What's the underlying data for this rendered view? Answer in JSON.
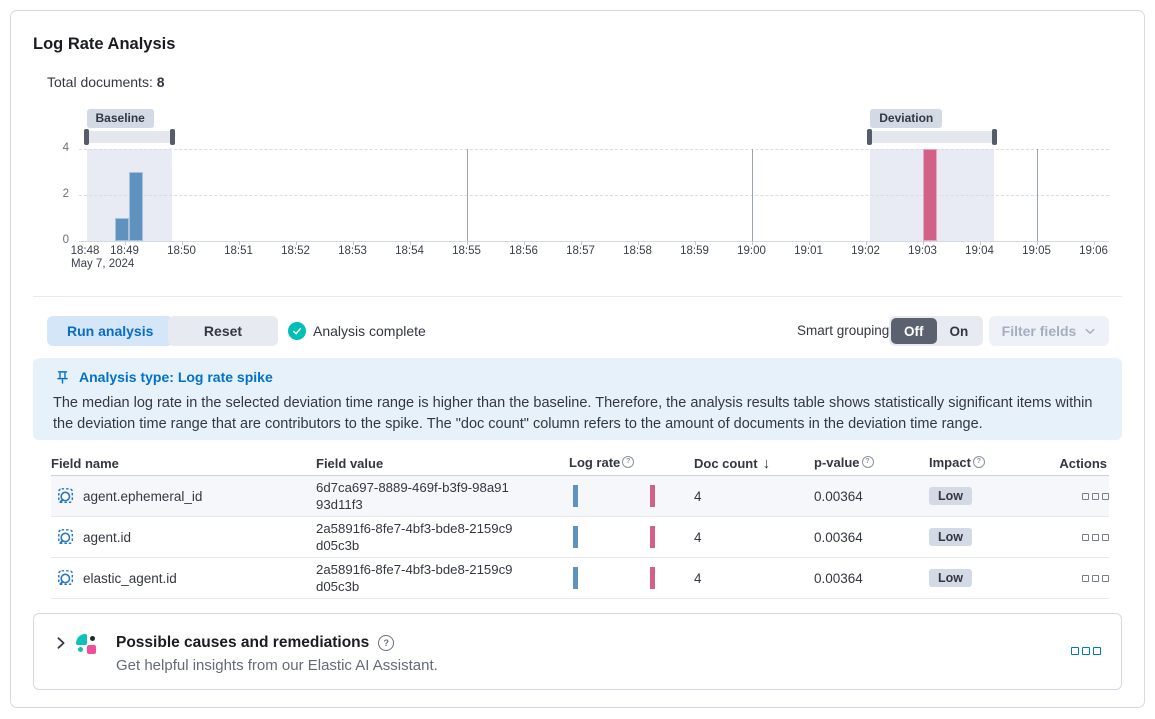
{
  "card": {
    "title": "Log Rate Analysis"
  },
  "summary": {
    "label": "Total documents:",
    "value": "8"
  },
  "chart_data": {
    "type": "bar",
    "title": "",
    "xlabel": "",
    "ylabel": "",
    "date_label": "May 7, 2024",
    "x_ticks": [
      "18:48",
      "18:49",
      "18:50",
      "18:51",
      "18:52",
      "18:53",
      "18:54",
      "18:55",
      "18:56",
      "18:57",
      "18:58",
      "18:59",
      "19:00",
      "19:01",
      "19:02",
      "19:03",
      "19:04",
      "19:05",
      "19:06"
    ],
    "y_ticks": [
      0,
      2,
      4
    ],
    "ylim": [
      0,
      4
    ],
    "v_gridlines": [
      "18:55:00",
      "19:00:00",
      "19:05:00"
    ],
    "bars": [
      {
        "time": "18:48:50",
        "count": 1,
        "series": "baseline"
      },
      {
        "time": "18:49:05",
        "count": 3,
        "series": "baseline"
      },
      {
        "time": "19:03:00",
        "count": 4,
        "series": "deviation"
      }
    ],
    "brushes": [
      {
        "name": "Baseline",
        "start": "18:48:20",
        "end": "18:49:50"
      },
      {
        "name": "Deviation",
        "start": "19:02:05",
        "end": "19:04:15"
      }
    ],
    "colors": {
      "baseline": "#6092C0",
      "deviation": "#D36086"
    }
  },
  "controls": {
    "run_button": "Run analysis",
    "reset_button": "Reset",
    "status": "Analysis complete",
    "smart_grouping_label": "Smart grouping",
    "toggle_off": "Off",
    "toggle_on": "On",
    "filter_fields": "Filter fields"
  },
  "callout": {
    "title": "Analysis type: Log rate spike",
    "body": "The median log rate in the selected deviation time range is higher than the baseline. Therefore, the analysis results table shows statistically significant items within the deviation time range that are contributors to the spike. The \"doc count\" column refers to the amount of documents in the deviation time range."
  },
  "table": {
    "columns": [
      "Field name",
      "Field value",
      "Log rate",
      "Doc count",
      "p-value",
      "Impact",
      "Actions"
    ],
    "sorted_column": "Doc count",
    "sort_direction": "desc",
    "rows": [
      {
        "field_name": "agent.ephemeral_id",
        "field_value": "6d7ca697-8889-469f-b3f9-98a9193d11f3",
        "doc_count": "4",
        "p_value": "0.00364",
        "impact": "Low"
      },
      {
        "field_name": "agent.id",
        "field_value": "2a5891f6-8fe7-4bf3-bde8-2159c9d05c3b",
        "doc_count": "4",
        "p_value": "0.00364",
        "impact": "Low"
      },
      {
        "field_name": "elastic_agent.id",
        "field_value": "2a5891f6-8fe7-4bf3-bde8-2159c9d05c3b",
        "doc_count": "4",
        "p_value": "0.00364",
        "impact": "Low"
      }
    ]
  },
  "insights_panel": {
    "title": "Possible causes and remediations",
    "subtitle": "Get helpful insights from our Elastic AI Assistant."
  },
  "colors": {
    "primary": "#0077CC",
    "success": "#00BFB3",
    "baseline_bar": "#6092C0",
    "deviation_bar": "#D36086",
    "callout_bg": "#E6F1FA",
    "badge_bg": "#D3DAE6",
    "ai_teal": "#0FBFBC",
    "ai_pink": "#F04E98"
  }
}
